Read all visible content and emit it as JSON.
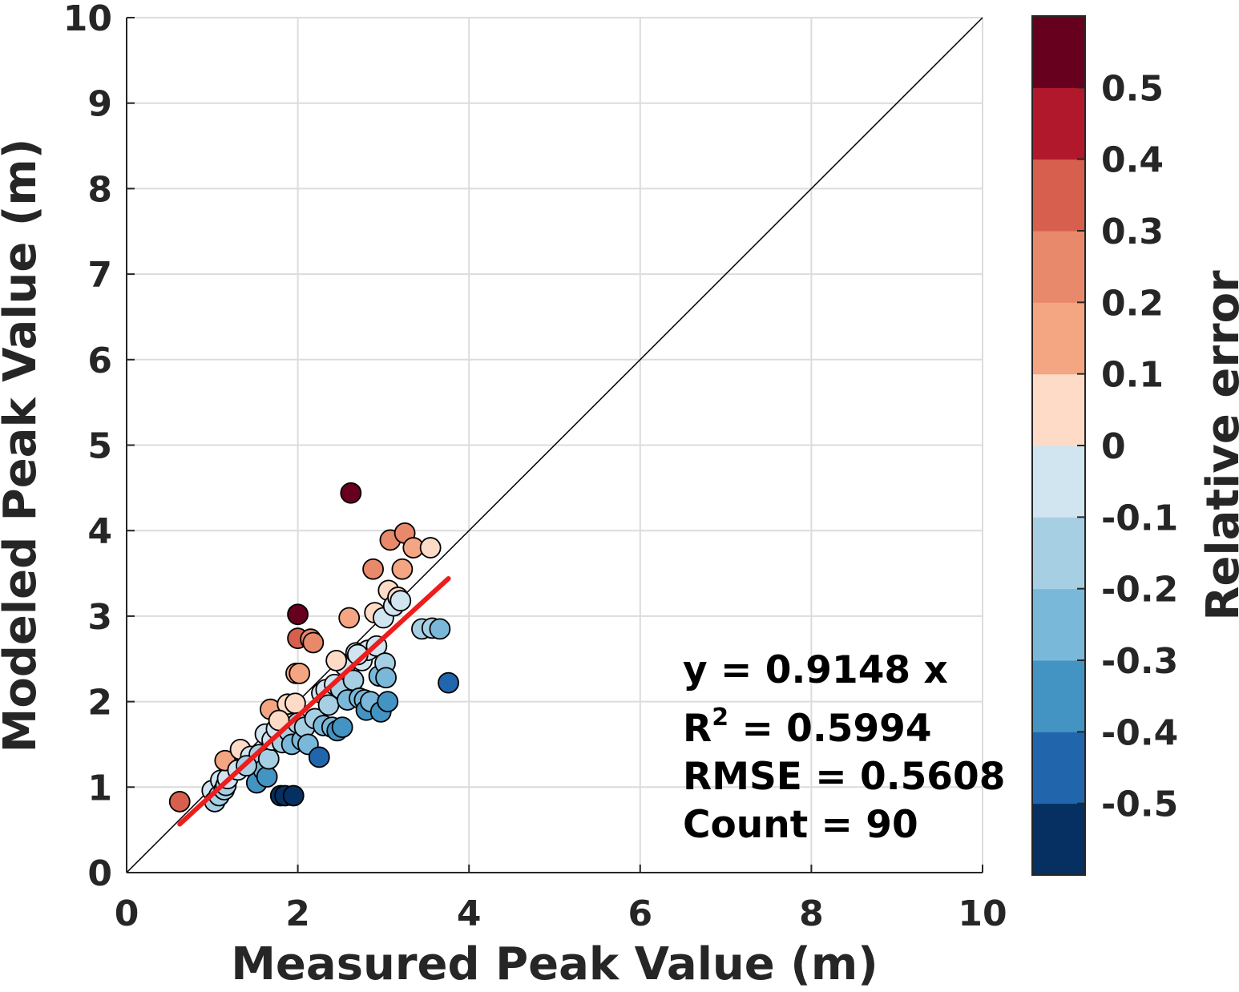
{
  "chart_data": {
    "type": "scatter",
    "title": "",
    "xlabel": "Measured Peak Value (m)",
    "ylabel": "Modeled Peak Value (m)",
    "xlim": [
      0,
      10
    ],
    "ylim": [
      0,
      10
    ],
    "xticks": [
      "0",
      "2",
      "4",
      "6",
      "8",
      "10"
    ],
    "yticks": [
      "0",
      "1",
      "2",
      "3",
      "4",
      "5",
      "6",
      "7",
      "8",
      "9",
      "10"
    ],
    "grid": true,
    "reference_line": "1:1",
    "fit_line": {
      "slope": 0.9148,
      "x_range": [
        0.62,
        3.76
      ],
      "color": "#ee1c1c"
    },
    "stats": {
      "line1": "y = 0.9148 x",
      "r2_prefix": "R",
      "r2_sup": "2",
      "r2_value": " = 0.5994",
      "line3": "RMSE = 0.5608",
      "line4": "Count = 90"
    },
    "colorbar": {
      "label": "Relative error",
      "tick_labels": [
        "0.5",
        "0.4",
        "0.3",
        "0.2",
        "0.1",
        "0",
        "-0.1",
        "-0.2",
        "-0.3",
        "-0.4",
        "-0.5"
      ],
      "tick_values": [
        0.5,
        0.4,
        0.3,
        0.2,
        0.1,
        0,
        -0.1,
        -0.2,
        -0.3,
        -0.4,
        -0.5
      ],
      "range": [
        -0.6,
        0.6
      ],
      "colors": [
        "#053061",
        "#2166ac",
        "#4393c3",
        "#7ab8d9",
        "#a7cfe4",
        "#d1e5f0",
        "#fddbc7",
        "#f4a582",
        "#e8896b",
        "#d6604d",
        "#b2182b",
        "#67001f"
      ]
    },
    "points": [
      {
        "x": 0.62,
        "y": 0.83,
        "e": 0.35
      },
      {
        "x": 1.0,
        "y": 0.96,
        "e": -0.04
      },
      {
        "x": 1.03,
        "y": 0.83,
        "e": -0.19
      },
      {
        "x": 1.08,
        "y": 0.9,
        "e": -0.17
      },
      {
        "x": 1.1,
        "y": 1.08,
        "e": -0.02
      },
      {
        "x": 1.14,
        "y": 0.97,
        "e": -0.15
      },
      {
        "x": 1.16,
        "y": 1.02,
        "e": -0.12
      },
      {
        "x": 1.18,
        "y": 1.1,
        "e": -0.07
      },
      {
        "x": 1.15,
        "y": 1.31,
        "e": 0.14
      },
      {
        "x": 1.33,
        "y": 1.44,
        "e": 0.08
      },
      {
        "x": 1.45,
        "y": 1.36,
        "e": -0.06
      },
      {
        "x": 1.5,
        "y": 1.28,
        "e": -0.15
      },
      {
        "x": 1.52,
        "y": 1.05,
        "e": -0.31
      },
      {
        "x": 1.55,
        "y": 1.38,
        "e": -0.11
      },
      {
        "x": 1.58,
        "y": 1.3,
        "e": -0.18
      },
      {
        "x": 1.6,
        "y": 1.2,
        "e": -0.25
      },
      {
        "x": 1.62,
        "y": 1.62,
        "e": -0.01
      },
      {
        "x": 1.64,
        "y": 1.12,
        "e": -0.32
      },
      {
        "x": 1.66,
        "y": 1.33,
        "e": -0.2
      },
      {
        "x": 1.68,
        "y": 1.91,
        "e": 0.14
      },
      {
        "x": 1.7,
        "y": 1.55,
        "e": -0.09
      },
      {
        "x": 1.75,
        "y": 1.68,
        "e": -0.04
      },
      {
        "x": 1.8,
        "y": 0.9,
        "e": -0.5
      },
      {
        "x": 1.82,
        "y": 1.52,
        "e": -0.16
      },
      {
        "x": 1.85,
        "y": 0.9,
        "e": -0.52
      },
      {
        "x": 1.88,
        "y": 1.97,
        "e": 0.05
      },
      {
        "x": 1.9,
        "y": 1.65,
        "e": -0.13
      },
      {
        "x": 1.93,
        "y": 1.5,
        "e": -0.22
      },
      {
        "x": 1.95,
        "y": 0.9,
        "e": -0.54
      },
      {
        "x": 1.97,
        "y": 1.98,
        "e": 0.01
      },
      {
        "x": 1.98,
        "y": 2.33,
        "e": 0.18
      },
      {
        "x": 2.0,
        "y": 1.75,
        "e": -0.12
      },
      {
        "x": 2.0,
        "y": 2.74,
        "e": 0.37
      },
      {
        "x": 2.0,
        "y": 3.02,
        "e": 0.51
      },
      {
        "x": 2.02,
        "y": 2.33,
        "e": 0.15
      },
      {
        "x": 2.05,
        "y": 1.55,
        "e": -0.24
      },
      {
        "x": 2.08,
        "y": 1.7,
        "e": -0.18
      },
      {
        "x": 2.12,
        "y": 1.5,
        "e": -0.29
      },
      {
        "x": 2.15,
        "y": 2.73,
        "e": 0.27
      },
      {
        "x": 2.18,
        "y": 2.69,
        "e": 0.23
      },
      {
        "x": 2.2,
        "y": 1.8,
        "e": -0.18
      },
      {
        "x": 2.25,
        "y": 1.35,
        "e": -0.4
      },
      {
        "x": 2.28,
        "y": 2.1,
        "e": -0.08
      },
      {
        "x": 2.3,
        "y": 1.72,
        "e": -0.25
      },
      {
        "x": 2.33,
        "y": 2.14,
        "e": -0.08
      },
      {
        "x": 2.36,
        "y": 1.96,
        "e": -0.17
      },
      {
        "x": 2.4,
        "y": 1.7,
        "e": -0.29
      },
      {
        "x": 2.43,
        "y": 2.2,
        "e": -0.09
      },
      {
        "x": 2.46,
        "y": 1.66,
        "e": -0.33
      },
      {
        "x": 2.5,
        "y": 2.15,
        "e": -0.14
      },
      {
        "x": 2.52,
        "y": 1.7,
        "e": -0.33
      },
      {
        "x": 2.55,
        "y": 2.42,
        "e": -0.05
      },
      {
        "x": 2.58,
        "y": 2.02,
        "e": -0.22
      },
      {
        "x": 2.6,
        "y": 2.98,
        "e": 0.15
      },
      {
        "x": 2.62,
        "y": 4.44,
        "e": 0.7
      },
      {
        "x": 2.65,
        "y": 2.25,
        "e": -0.15
      },
      {
        "x": 2.68,
        "y": 2.57,
        "e": -0.04
      },
      {
        "x": 2.72,
        "y": 2.04,
        "e": -0.25
      },
      {
        "x": 2.75,
        "y": 2.48,
        "e": -0.1
      },
      {
        "x": 2.78,
        "y": 2.02,
        "e": -0.27
      },
      {
        "x": 2.8,
        "y": 1.9,
        "e": -0.32
      },
      {
        "x": 2.82,
        "y": 2.6,
        "e": -0.08
      },
      {
        "x": 2.85,
        "y": 2.0,
        "e": -0.3
      },
      {
        "x": 2.88,
        "y": 3.55,
        "e": 0.23
      },
      {
        "x": 2.9,
        "y": 3.04,
        "e": 0.05
      },
      {
        "x": 2.92,
        "y": 2.65,
        "e": -0.09
      },
      {
        "x": 2.95,
        "y": 2.3,
        "e": -0.22
      },
      {
        "x": 2.97,
        "y": 1.88,
        "e": -0.37
      },
      {
        "x": 3.0,
        "y": 2.98,
        "e": -0.01
      },
      {
        "x": 3.02,
        "y": 2.45,
        "e": -0.19
      },
      {
        "x": 3.03,
        "y": 2.28,
        "e": -0.25
      },
      {
        "x": 3.05,
        "y": 2.0,
        "e": -0.34
      },
      {
        "x": 3.06,
        "y": 3.3,
        "e": 0.08
      },
      {
        "x": 3.08,
        "y": 3.89,
        "e": 0.26
      },
      {
        "x": 3.12,
        "y": 3.12,
        "e": -0.01
      },
      {
        "x": 3.17,
        "y": 3.22,
        "e": 0.02
      },
      {
        "x": 3.2,
        "y": 3.18,
        "e": -0.01
      },
      {
        "x": 3.22,
        "y": 3.55,
        "e": 0.1
      },
      {
        "x": 3.25,
        "y": 3.97,
        "e": 0.22
      },
      {
        "x": 3.35,
        "y": 3.8,
        "e": 0.13
      },
      {
        "x": 3.45,
        "y": 2.85,
        "e": -0.17
      },
      {
        "x": 3.55,
        "y": 3.8,
        "e": 0.07
      },
      {
        "x": 3.57,
        "y": 2.86,
        "e": -0.2
      },
      {
        "x": 3.66,
        "y": 2.85,
        "e": -0.22
      },
      {
        "x": 3.76,
        "y": 2.22,
        "e": -0.41
      },
      {
        "x": 1.3,
        "y": 1.2,
        "e": -0.08
      },
      {
        "x": 1.4,
        "y": 1.25,
        "e": -0.11
      },
      {
        "x": 2.45,
        "y": 2.48,
        "e": 0.01
      },
      {
        "x": 1.78,
        "y": 1.78,
        "e": 0.0
      },
      {
        "x": 2.7,
        "y": 2.55,
        "e": -0.06
      }
    ]
  }
}
